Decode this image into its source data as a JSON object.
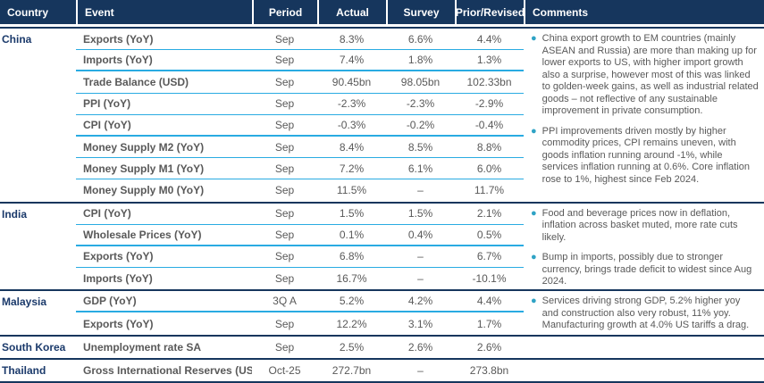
{
  "header": {
    "columns": [
      "Country",
      "Event",
      "Period",
      "Actual",
      "Survey",
      "Prior/Revised",
      "Comments"
    ]
  },
  "colors": {
    "header_bg": "#16365d",
    "country_text": "#1b3a6b",
    "body_text": "#595959",
    "row_divider": "#29abe2",
    "group_divider": "#16365d",
    "bullet": "#2fa3c5"
  },
  "groups": [
    {
      "country": "China",
      "rows": [
        {
          "event": "Exports (YoY)",
          "period": "Sep",
          "actual": "8.3%",
          "survey": "6.6%",
          "prior": "4.4%",
          "divider": "thin"
        },
        {
          "event": "Imports (YoY)",
          "period": "Sep",
          "actual": "7.4%",
          "survey": "1.8%",
          "prior": "1.3%",
          "divider": "thick"
        },
        {
          "event": "Trade Balance (USD)",
          "period": "Sep",
          "actual": "90.45bn",
          "survey": "98.05bn",
          "prior": "102.33bn",
          "divider": "thin"
        },
        {
          "event": "PPI (YoY)",
          "period": "Sep",
          "actual": "-2.3%",
          "survey": "-2.3%",
          "prior": "-2.9%",
          "divider": "thin"
        },
        {
          "event": "CPI (YoY)",
          "period": "Sep",
          "actual": "-0.3%",
          "survey": "-0.2%",
          "prior": "-0.4%",
          "divider": "thick"
        },
        {
          "event": "Money Supply M2 (YoY)",
          "period": "Sep",
          "actual": "8.4%",
          "survey": "8.5%",
          "prior": "8.8%",
          "divider": "thin"
        },
        {
          "event": "Money Supply M1 (YoY)",
          "period": "Sep",
          "actual": "7.2%",
          "survey": "6.1%",
          "prior": "6.0%",
          "divider": "thin"
        },
        {
          "event": "Money Supply M0 (YoY)",
          "period": "Sep",
          "actual": "11.5%",
          "survey": "–",
          "prior": "11.7%",
          "divider": "none"
        }
      ],
      "comments": [
        "China export growth to EM countries (mainly ASEAN and Russia) are more than making up for lower exports to US, with higher import growth also a surprise, however most of this was linked to golden-week gains, as well as industrial related goods – not reflective of any sustainable improvement in private consumption.",
        "PPI improvements driven mostly by higher commodity prices, CPI remains uneven, with goods inflation running around -1%, while services inflation running at 0.6%. Core inflation rose to 1%, highest since Feb 2024."
      ]
    },
    {
      "country": "India",
      "rows": [
        {
          "event": "CPI (YoY)",
          "period": "Sep",
          "actual": "1.5%",
          "survey": "1.5%",
          "prior": "2.1%",
          "divider": "thin"
        },
        {
          "event": "Wholesale Prices (YoY)",
          "period": "Sep",
          "actual": "0.1%",
          "survey": "0.4%",
          "prior": "0.5%",
          "divider": "thick"
        },
        {
          "event": "Exports (YoY)",
          "period": "Sep",
          "actual": "6.8%",
          "survey": "–",
          "prior": "6.7%",
          "divider": "thin"
        },
        {
          "event": "Imports (YoY)",
          "period": "Sep",
          "actual": "16.7%",
          "survey": "–",
          "prior": "-10.1%",
          "divider": "none"
        }
      ],
      "comments": [
        "Food and beverage prices now in deflation, inflation across basket muted, more rate cuts likely.",
        "Bump in imports, possibly due to stronger currency, brings trade deficit to widest since Aug 2024."
      ]
    },
    {
      "country": "Malaysia",
      "rows": [
        {
          "event": "GDP (YoY)",
          "period": "3Q A",
          "actual": "5.2%",
          "survey": "4.2%",
          "prior": "4.4%",
          "divider": "thick"
        },
        {
          "event": "Exports (YoY)",
          "period": "Sep",
          "actual": "12.2%",
          "survey": "3.1%",
          "prior": "1.7%",
          "divider": "none"
        }
      ],
      "comments": [
        "Services driving strong GDP, 5.2% higher yoy and construction also very robust, 11% yoy. Manufacturing growth at 4.0% US tariffs a drag."
      ]
    },
    {
      "country": "South Korea",
      "rows": [
        {
          "event": "Unemployment rate SA",
          "period": "Sep",
          "actual": "2.5%",
          "survey": "2.6%",
          "prior": "2.6%",
          "divider": "none"
        }
      ],
      "comments": []
    },
    {
      "country": "Thailand",
      "rows": [
        {
          "event": "Gross International Reserves (USD)",
          "period": "Oct-25",
          "actual": "272.7bn",
          "survey": "–",
          "prior": "273.8bn",
          "divider": "none"
        }
      ],
      "comments": []
    }
  ]
}
